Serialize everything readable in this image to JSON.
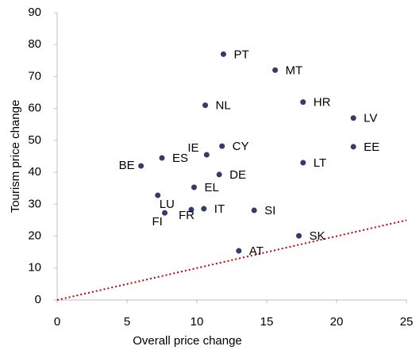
{
  "chart_data": {
    "type": "scatter",
    "x_label": "Overall price change",
    "y_label": "Tourism price change",
    "point_labels": [
      "PT",
      "MT",
      "NL",
      "HR",
      "LV",
      "EE",
      "CY",
      "IE",
      "ES",
      "BE",
      "LT",
      "DE",
      "EL",
      "LU",
      "FI",
      "FR",
      "IT",
      "SI",
      "SK",
      "AT"
    ],
    "x": [
      11.9,
      15.6,
      10.6,
      17.6,
      21.2,
      21.2,
      11.8,
      10.7,
      7.5,
      6.0,
      17.6,
      11.6,
      9.8,
      7.2,
      7.7,
      9.6,
      10.5,
      14.1,
      17.3,
      13.0
    ],
    "y": [
      77,
      72,
      61,
      62,
      57,
      48,
      48.2,
      45.5,
      44.5,
      42,
      43,
      39.3,
      35.3,
      32.8,
      27.3,
      28.3,
      28.6,
      28.1,
      20.1,
      15.4
    ],
    "color": "#353a6e",
    "reference_line": {
      "x": [
        0,
        25
      ],
      "y": [
        0,
        25
      ],
      "color": "#c00000"
    },
    "xlim": [
      0,
      25
    ],
    "xticks": [
      0,
      5,
      10,
      15,
      20,
      25
    ],
    "ylim": [
      0,
      90
    ],
    "yticks": [
      0,
      10,
      20,
      30,
      40,
      50,
      60,
      70,
      80,
      90
    ]
  }
}
